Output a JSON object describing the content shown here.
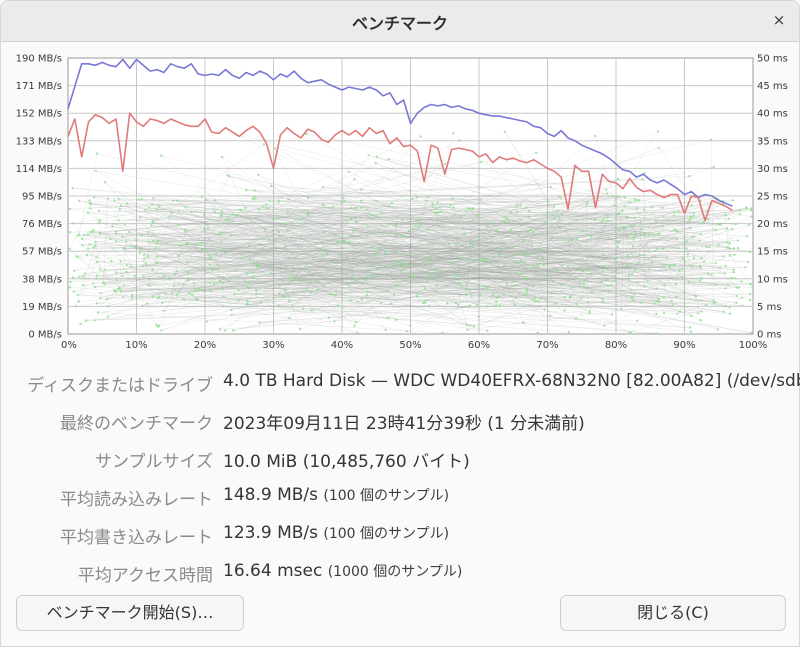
{
  "window": {
    "title": "ベンチマーク",
    "close_glyph": "×"
  },
  "chart_data": {
    "type": "line",
    "left_axis": {
      "unit": "MB/s",
      "range": [
        0,
        190
      ],
      "ticks": [
        "0 MB/s",
        "19 MB/s",
        "38 MB/s",
        "57 MB/s",
        "76 MB/s",
        "95 MB/s",
        "114 MB/s",
        "133 MB/s",
        "152 MB/s",
        "171 MB/s",
        "190 MB/s"
      ]
    },
    "right_axis": {
      "unit": "ms",
      "range": [
        0,
        50
      ],
      "ticks": [
        "0 ms",
        "5 ms",
        "10 ms",
        "15 ms",
        "20 ms",
        "25 ms",
        "30 ms",
        "35 ms",
        "40 ms",
        "45 ms",
        "50 ms"
      ]
    },
    "x_axis": {
      "unit": "%",
      "range": [
        0,
        100
      ],
      "ticks": [
        "0%",
        "10%",
        "20%",
        "30%",
        "40%",
        "50%",
        "60%",
        "70%",
        "80%",
        "90%",
        "100%"
      ]
    },
    "grid": true,
    "colors": {
      "read": "#7878d6",
      "write": "#e07a7a",
      "access": "#8fe08f",
      "access_line": "#9aa29a"
    },
    "series": [
      {
        "key": "read",
        "points": [
          [
            0,
            155
          ],
          [
            2,
            186
          ],
          [
            3,
            186
          ],
          [
            4,
            185
          ],
          [
            5,
            187
          ],
          [
            6,
            185
          ],
          [
            7,
            184
          ],
          [
            8,
            189
          ],
          [
            9,
            183
          ],
          [
            10,
            189
          ],
          [
            12,
            181
          ],
          [
            13,
            182
          ],
          [
            14,
            180
          ],
          [
            15,
            186
          ],
          [
            16,
            184
          ],
          [
            17,
            183
          ],
          [
            18,
            186
          ],
          [
            19,
            179
          ],
          [
            20,
            178
          ],
          [
            21,
            179
          ],
          [
            22,
            178
          ],
          [
            23,
            182
          ],
          [
            24,
            178
          ],
          [
            25,
            176
          ],
          [
            26,
            180
          ],
          [
            27,
            178
          ],
          [
            28,
            181
          ],
          [
            29,
            179
          ],
          [
            30,
            175
          ],
          [
            31,
            179
          ],
          [
            32,
            177
          ],
          [
            33,
            181
          ],
          [
            34,
            176
          ],
          [
            35,
            173
          ],
          [
            36,
            174
          ],
          [
            37,
            175
          ],
          [
            38,
            172
          ],
          [
            39,
            170
          ],
          [
            40,
            168
          ],
          [
            41,
            170
          ],
          [
            42,
            169
          ],
          [
            43,
            168
          ],
          [
            44,
            170
          ],
          [
            45,
            168
          ],
          [
            46,
            164
          ],
          [
            47,
            166
          ],
          [
            48,
            158
          ],
          [
            49,
            161
          ],
          [
            50,
            145
          ],
          [
            51,
            152
          ],
          [
            52,
            156
          ],
          [
            53,
            158
          ],
          [
            54,
            157
          ],
          [
            55,
            158
          ],
          [
            56,
            156
          ],
          [
            57,
            157
          ],
          [
            58,
            155
          ],
          [
            59,
            154
          ],
          [
            60,
            152
          ],
          [
            61,
            151
          ],
          [
            62,
            150
          ],
          [
            63,
            150
          ],
          [
            64,
            149
          ],
          [
            65,
            148
          ],
          [
            66,
            147
          ],
          [
            67,
            146
          ],
          [
            68,
            143
          ],
          [
            69,
            142
          ],
          [
            70,
            138
          ],
          [
            71,
            136
          ],
          [
            72,
            140
          ],
          [
            73,
            135
          ],
          [
            74,
            133
          ],
          [
            75,
            130
          ],
          [
            76,
            128
          ],
          [
            77,
            126
          ],
          [
            78,
            124
          ],
          [
            79,
            121
          ],
          [
            80,
            117
          ],
          [
            81,
            113
          ],
          [
            82,
            112
          ],
          [
            83,
            108
          ],
          [
            84,
            110
          ],
          [
            85,
            106
          ],
          [
            86,
            104
          ],
          [
            87,
            106
          ],
          [
            88,
            103
          ],
          [
            89,
            100
          ],
          [
            90,
            96
          ],
          [
            91,
            98
          ],
          [
            92,
            94
          ],
          [
            93,
            96
          ],
          [
            94,
            95
          ],
          [
            95,
            92
          ],
          [
            96,
            90
          ],
          [
            97,
            88
          ]
        ]
      },
      {
        "key": "write",
        "points": [
          [
            0,
            136
          ],
          [
            1,
            148
          ],
          [
            2,
            122
          ],
          [
            3,
            146
          ],
          [
            4,
            151
          ],
          [
            5,
            149
          ],
          [
            6,
            145
          ],
          [
            7,
            148
          ],
          [
            8,
            112
          ],
          [
            9,
            152
          ],
          [
            10,
            146
          ],
          [
            11,
            143
          ],
          [
            12,
            148
          ],
          [
            13,
            147
          ],
          [
            14,
            145
          ],
          [
            15,
            148
          ],
          [
            16,
            146
          ],
          [
            17,
            144
          ],
          [
            18,
            143
          ],
          [
            19,
            143
          ],
          [
            20,
            148
          ],
          [
            21,
            139
          ],
          [
            22,
            138
          ],
          [
            23,
            142
          ],
          [
            24,
            139
          ],
          [
            25,
            136
          ],
          [
            26,
            140
          ],
          [
            27,
            143
          ],
          [
            28,
            139
          ],
          [
            29,
            131
          ],
          [
            30,
            114
          ],
          [
            31,
            137
          ],
          [
            32,
            142
          ],
          [
            33,
            138
          ],
          [
            34,
            135
          ],
          [
            35,
            141
          ],
          [
            36,
            139
          ],
          [
            37,
            134
          ],
          [
            38,
            132
          ],
          [
            39,
            137
          ],
          [
            40,
            140
          ],
          [
            41,
            137
          ],
          [
            42,
            140
          ],
          [
            43,
            136
          ],
          [
            44,
            142
          ],
          [
            45,
            138
          ],
          [
            46,
            140
          ],
          [
            47,
            131
          ],
          [
            48,
            135
          ],
          [
            49,
            129
          ],
          [
            50,
            130
          ],
          [
            51,
            126
          ],
          [
            52,
            105
          ],
          [
            53,
            130
          ],
          [
            54,
            128
          ],
          [
            55,
            110
          ],
          [
            56,
            127
          ],
          [
            57,
            128
          ],
          [
            58,
            127
          ],
          [
            59,
            126
          ],
          [
            60,
            122
          ],
          [
            61,
            124
          ],
          [
            62,
            118
          ],
          [
            63,
            122
          ],
          [
            64,
            120
          ],
          [
            65,
            121
          ],
          [
            66,
            119
          ],
          [
            67,
            118
          ],
          [
            68,
            120
          ],
          [
            69,
            117
          ],
          [
            70,
            114
          ],
          [
            71,
            112
          ],
          [
            72,
            108
          ],
          [
            73,
            86
          ],
          [
            74,
            116
          ],
          [
            75,
            112
          ],
          [
            76,
            112
          ],
          [
            77,
            87
          ],
          [
            78,
            110
          ],
          [
            79,
            105
          ],
          [
            80,
            104
          ],
          [
            81,
            100
          ],
          [
            82,
            107
          ],
          [
            83,
            101
          ],
          [
            84,
            98
          ],
          [
            85,
            99
          ],
          [
            86,
            96
          ],
          [
            87,
            94
          ],
          [
            88,
            96
          ],
          [
            89,
            96
          ],
          [
            90,
            83
          ],
          [
            91,
            95
          ],
          [
            92,
            94
          ],
          [
            93,
            78
          ],
          [
            94,
            92
          ],
          [
            95,
            90
          ],
          [
            96,
            88
          ],
          [
            97,
            85
          ]
        ]
      }
    ],
    "access_samples_count": 1000
  },
  "info": {
    "rows": [
      {
        "label": "ディスクまたはドライブ",
        "value": "4.0 TB Hard Disk — WDC WD40EFRX-68N32N0 [82.00A82] (/dev/sdb)",
        "note": ""
      },
      {
        "label": "最終のベンチマーク",
        "value": "2023年09月11日 23時41分39秒 (1 分未満前)",
        "note": ""
      },
      {
        "label": "サンプルサイズ",
        "value": "10.0 MiB (10,485,760 バイト)",
        "note": ""
      },
      {
        "label": "平均読み込みレート",
        "value": "148.9 MB/s",
        "note": "(100 個のサンプル)"
      },
      {
        "label": "平均書き込みレート",
        "value": "123.9 MB/s",
        "note": "(100 個のサンプル)"
      },
      {
        "label": "平均アクセス時間",
        "value": "16.64 msec",
        "note": "(1000 個のサンプル)"
      }
    ]
  },
  "buttons": {
    "start": "ベンチマーク開始(S)…",
    "close": "閉じる(C)"
  }
}
